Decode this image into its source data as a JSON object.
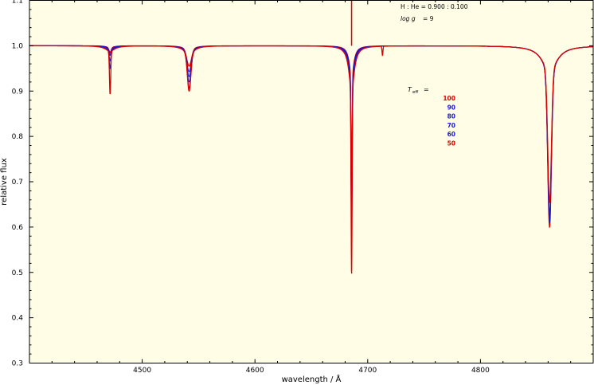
{
  "chart_data": {
    "type": "line",
    "title": "",
    "xlabel": "wavelength / Å",
    "ylabel": "relative flux",
    "xlim": [
      4400,
      4900
    ],
    "ylim": [
      0.3,
      1.1
    ],
    "x_ticks": [
      4500,
      4600,
      4700,
      4800
    ],
    "y_ticks": [
      0.3,
      0.4,
      0.5,
      0.6,
      0.7,
      0.8,
      0.9,
      1.0,
      1.1
    ],
    "x_tick_labels": [
      "4500",
      "4600",
      "4700",
      "4800"
    ],
    "y_tick_labels": [
      "0.3",
      "0.4",
      "0.5",
      "0.6",
      "0.7",
      "0.8",
      "0.9",
      "1.0",
      "1.1"
    ],
    "background_color": "#fffde6",
    "grid": false,
    "annotations": {
      "composition": "H : He = 0.900 : 0.100",
      "log_g_label": "log g",
      "log_g_value": "= 9"
    },
    "legend": {
      "title": "T",
      "title_subscript": "eff",
      "title_eq": "=",
      "placement": "right"
    },
    "series": [
      {
        "name": "100",
        "color": "#dd0000",
        "continuum": 1.0,
        "lines": [
          {
            "center": 4471.5,
            "depth": 0.095,
            "width": 0.55,
            "wing": 0.012,
            "wingw": 5
          },
          {
            "center": 4541.6,
            "depth": 0.08,
            "width": 1.5,
            "wing": 0.02,
            "wingw": 5
          },
          {
            "center": 4685.7,
            "depth": 0.405,
            "width": 0.45,
            "wing": 0.1,
            "wingw": 2.8
          },
          {
            "center": 4713.1,
            "depth": 0.02,
            "width": 0.4,
            "wing": 0,
            "wingw": 1
          },
          {
            "center": 4861.3,
            "depth": 0.29,
            "width": 1.6,
            "wing": 0.055,
            "wingw": 8
          }
        ]
      },
      {
        "name": "90",
        "color": "#1a1acc",
        "continuum": 1.0,
        "lines": [
          {
            "center": 4471.5,
            "depth": 0.04,
            "width": 0.7,
            "wing": 0.01,
            "wingw": 4.5
          },
          {
            "center": 4541.6,
            "depth": 0.075,
            "width": 1.6,
            "wing": 0.018,
            "wingw": 5
          },
          {
            "center": 4685.7,
            "depth": 0.36,
            "width": 0.45,
            "wing": 0.09,
            "wingw": 2.6
          },
          {
            "center": 4861.3,
            "depth": 0.31,
            "width": 1.6,
            "wing": 0.06,
            "wingw": 7.5
          }
        ]
      },
      {
        "name": "80",
        "color": "#1a1acc",
        "continuum": 1.0,
        "lines": [
          {
            "center": 4471.5,
            "depth": 0.025,
            "width": 0.8,
            "wing": 0.008,
            "wingw": 4
          },
          {
            "center": 4541.6,
            "depth": 0.065,
            "width": 1.7,
            "wing": 0.015,
            "wingw": 5
          },
          {
            "center": 4685.7,
            "depth": 0.34,
            "width": 0.45,
            "wing": 0.085,
            "wingw": 2.5
          },
          {
            "center": 4861.3,
            "depth": 0.32,
            "width": 1.6,
            "wing": 0.06,
            "wingw": 7.5
          }
        ]
      },
      {
        "name": "70",
        "color": "#1a1acc",
        "continuum": 1.0,
        "lines": [
          {
            "center": 4471.5,
            "depth": 0.015,
            "width": 0.9,
            "wing": 0.006,
            "wingw": 4
          },
          {
            "center": 4541.6,
            "depth": 0.055,
            "width": 1.8,
            "wing": 0.013,
            "wingw": 5
          },
          {
            "center": 4685.7,
            "depth": 0.32,
            "width": 0.45,
            "wing": 0.08,
            "wingw": 2.4
          },
          {
            "center": 4861.3,
            "depth": 0.32,
            "width": 1.6,
            "wing": 0.06,
            "wingw": 7.5
          }
        ]
      },
      {
        "name": "60",
        "color": "#1a1acc",
        "continuum": 1.0,
        "lines": [
          {
            "center": 4471.5,
            "depth": 0.012,
            "width": 1.0,
            "wing": 0.005,
            "wingw": 4
          },
          {
            "center": 4541.6,
            "depth": 0.045,
            "width": 1.9,
            "wing": 0.012,
            "wingw": 5
          },
          {
            "center": 4685.7,
            "depth": 0.3,
            "width": 0.45,
            "wing": 0.075,
            "wingw": 2.4
          },
          {
            "center": 4861.3,
            "depth": 0.33,
            "width": 1.6,
            "wing": 0.06,
            "wingw": 7.5
          }
        ]
      },
      {
        "name": "50",
        "color": "#dd0000",
        "continuum": 1.0,
        "lines": [
          {
            "center": 4471.5,
            "depth": 0.01,
            "width": 1.0,
            "wing": 0.004,
            "wingw": 4
          },
          {
            "center": 4541.6,
            "depth": 0.035,
            "width": 2.0,
            "wing": 0.01,
            "wingw": 5
          },
          {
            "center": 4685.7,
            "depth": 0.28,
            "width": 0.45,
            "wing": 0.07,
            "wingw": 2.3
          },
          {
            "center": 4861.3,
            "depth": 0.34,
            "width": 1.6,
            "wing": 0.06,
            "wingw": 7.5
          }
        ]
      }
    ],
    "emission_spike": {
      "x": 4685.7,
      "y_top": 1.1,
      "y_bottom": 1.0,
      "color": "#dd0000"
    }
  }
}
